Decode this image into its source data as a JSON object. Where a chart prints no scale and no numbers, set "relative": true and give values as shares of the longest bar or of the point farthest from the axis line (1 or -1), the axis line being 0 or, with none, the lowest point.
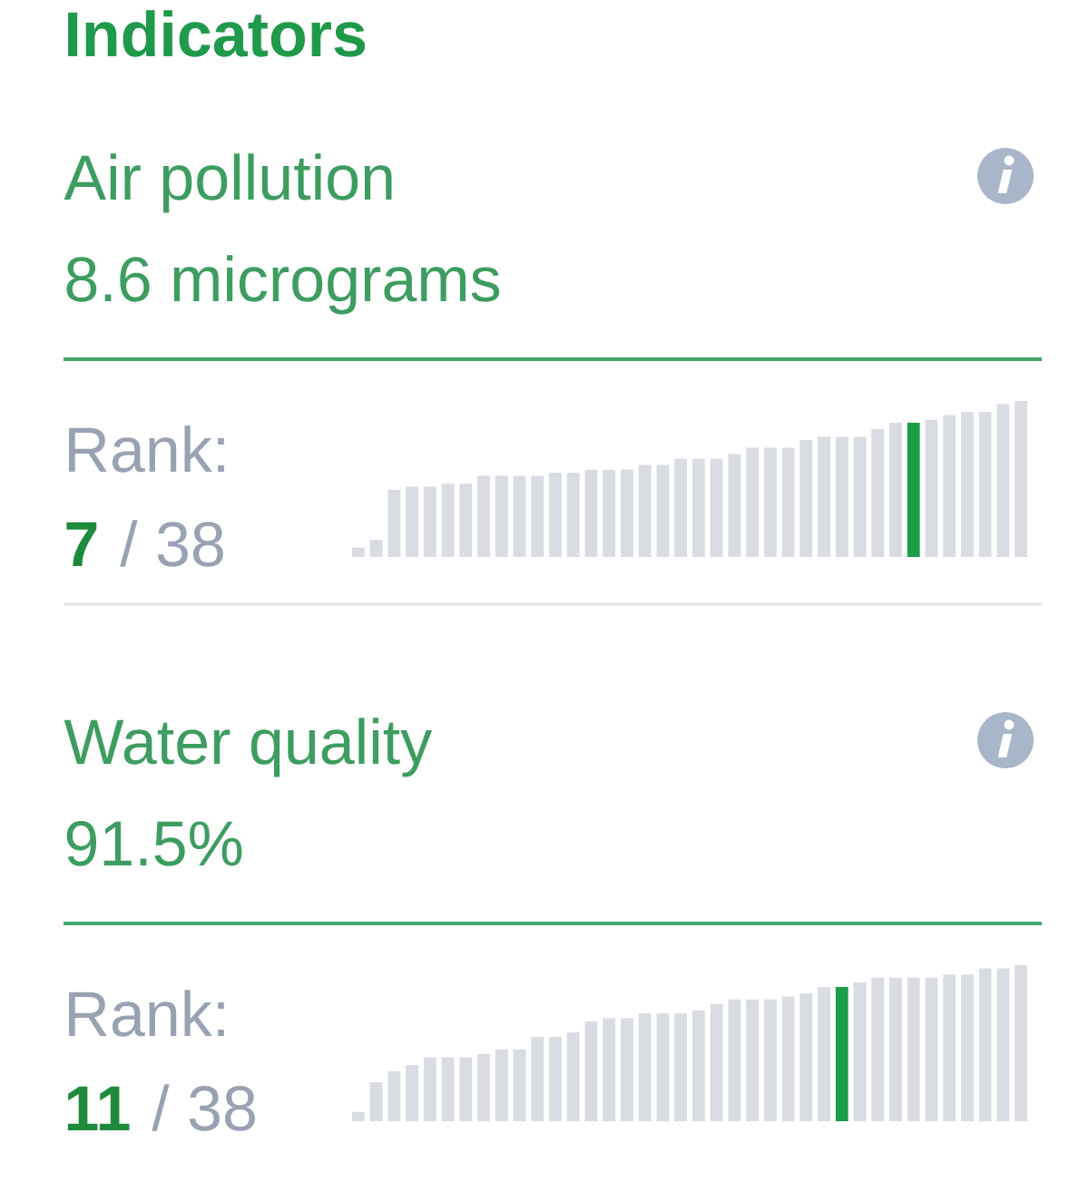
{
  "chart_data": [
    {
      "type": "other",
      "title": "Indicators"
    },
    {
      "type": "bar",
      "title": "Air pollution",
      "subtitle": "8.6 micrograms",
      "annotations": [
        "Rank:",
        "7",
        "/ 38"
      ],
      "relative": true,
      "categories": [
        null,
        null,
        null,
        null,
        null,
        null,
        null,
        null,
        null,
        null,
        null,
        null,
        null,
        null,
        null,
        null,
        null,
        null,
        null,
        null,
        null,
        null,
        null,
        null,
        null,
        null,
        null,
        null,
        null,
        null,
        null,
        null,
        null,
        null,
        null,
        null,
        null,
        null
      ],
      "values": [
        0.06,
        0.11,
        0.43,
        0.45,
        0.45,
        0.47,
        0.47,
        0.52,
        0.52,
        0.52,
        0.52,
        0.54,
        0.54,
        0.56,
        0.56,
        0.56,
        0.59,
        0.59,
        0.63,
        0.63,
        0.63,
        0.66,
        0.7,
        0.7,
        0.7,
        0.75,
        0.77,
        0.77,
        0.77,
        0.82,
        0.86,
        0.86,
        0.88,
        0.91,
        0.93,
        0.93,
        0.98,
        1
      ],
      "colors": [
        "#d9dce3",
        "#d9dce3",
        "#d9dce3",
        "#d9dce3",
        "#d9dce3",
        "#d9dce3",
        "#d9dce3",
        "#d9dce3",
        "#d9dce3",
        "#d9dce3",
        "#d9dce3",
        "#d9dce3",
        "#d9dce3",
        "#d9dce3",
        "#d9dce3",
        "#d9dce3",
        "#d9dce3",
        "#d9dce3",
        "#d9dce3",
        "#d9dce3",
        "#d9dce3",
        "#d9dce3",
        "#d9dce3",
        "#d9dce3",
        "#d9dce3",
        "#d9dce3",
        "#d9dce3",
        "#d9dce3",
        "#d9dce3",
        "#d9dce3",
        "#d9dce3",
        "#1b9e46",
        "#d9dce3",
        "#d9dce3",
        "#d9dce3",
        "#d9dce3",
        "#d9dce3",
        "#d9dce3"
      ]
    },
    {
      "type": "bar",
      "title": "Water quality",
      "subtitle": "91.5%",
      "annotations": [
        "Rank:",
        "11",
        "/ 38"
      ],
      "relative": true,
      "categories": [
        null,
        null,
        null,
        null,
        null,
        null,
        null,
        null,
        null,
        null,
        null,
        null,
        null,
        null,
        null,
        null,
        null,
        null,
        null,
        null,
        null,
        null,
        null,
        null,
        null,
        null,
        null,
        null,
        null,
        null,
        null,
        null,
        null,
        null,
        null,
        null,
        null,
        null
      ],
      "values": [
        0.06,
        0.25,
        0.32,
        0.36,
        0.41,
        0.41,
        0.41,
        0.43,
        0.46,
        0.46,
        0.54,
        0.54,
        0.57,
        0.64,
        0.66,
        0.66,
        0.69,
        0.69,
        0.69,
        0.71,
        0.75,
        0.78,
        0.78,
        0.78,
        0.8,
        0.82,
        0.86,
        0.86,
        0.89,
        0.92,
        0.92,
        0.92,
        0.92,
        0.94,
        0.94,
        0.98,
        0.98,
        1
      ],
      "colors": [
        "#d9dce3",
        "#d9dce3",
        "#d9dce3",
        "#d9dce3",
        "#d9dce3",
        "#d9dce3",
        "#d9dce3",
        "#d9dce3",
        "#d9dce3",
        "#d9dce3",
        "#d9dce3",
        "#d9dce3",
        "#d9dce3",
        "#d9dce3",
        "#d9dce3",
        "#d9dce3",
        "#d9dce3",
        "#d9dce3",
        "#d9dce3",
        "#d9dce3",
        "#d9dce3",
        "#d9dce3",
        "#d9dce3",
        "#d9dce3",
        "#d9dce3",
        "#d9dce3",
        "#d9dce3",
        "#1b9e46",
        "#d9dce3",
        "#d9dce3",
        "#d9dce3",
        "#d9dce3",
        "#d9dce3",
        "#d9dce3",
        "#d9dce3",
        "#d9dce3",
        "#d9dce3",
        "#d9dce3"
      ]
    }
  ]
}
